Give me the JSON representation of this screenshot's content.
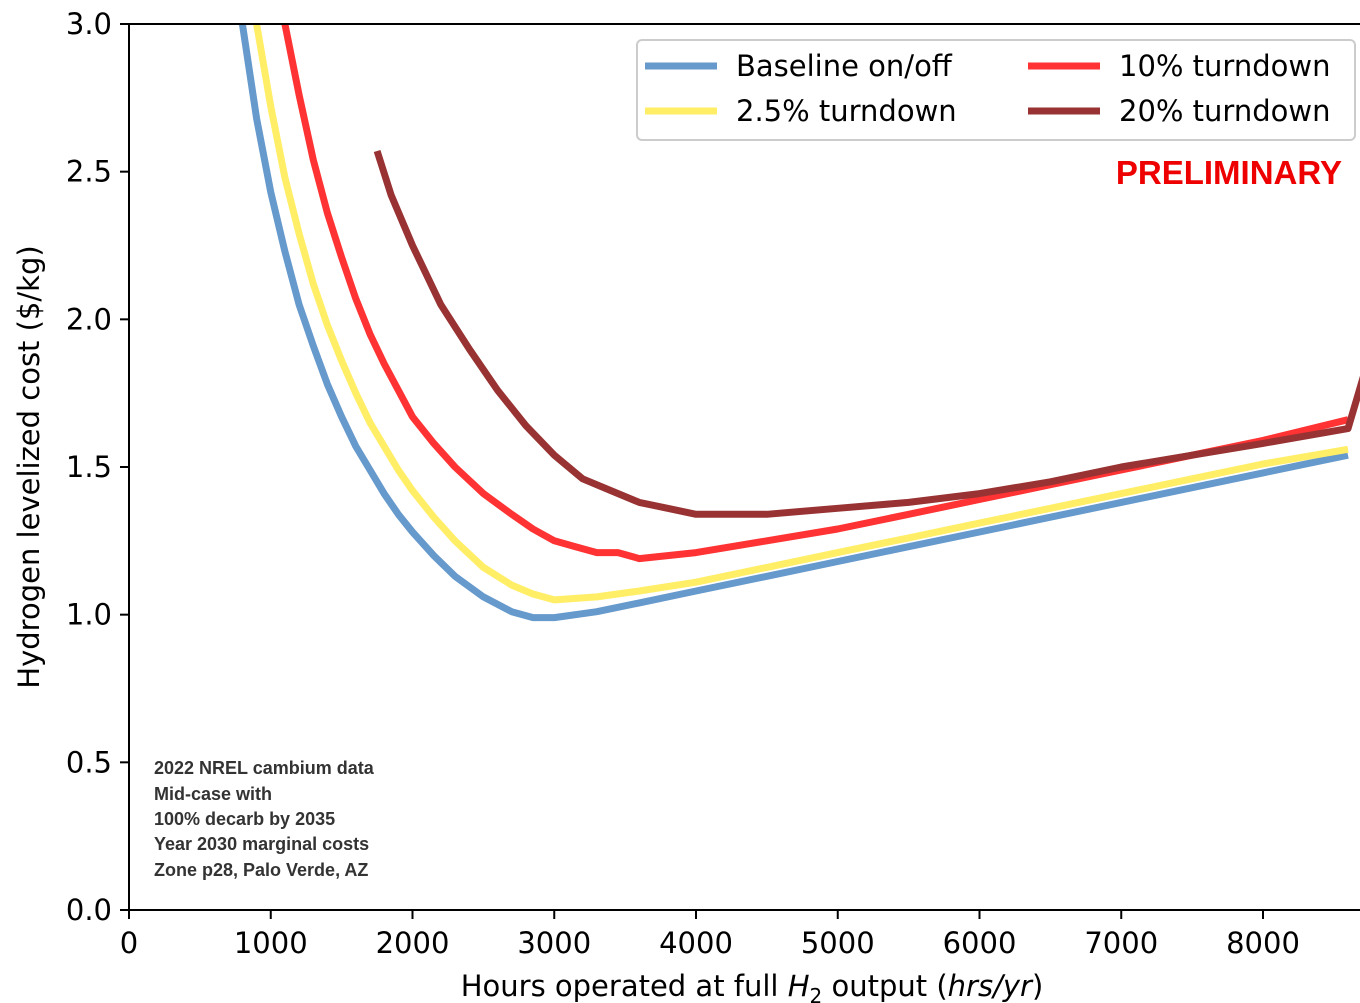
{
  "chart_data": {
    "type": "line",
    "xlabel_prefix": "Hours operated at full ",
    "xlabel_var": "H",
    "xlabel_sub": "2",
    "xlabel_mid": " output (",
    "xlabel_unit": "hrs/yr",
    "xlabel_suffix": ")",
    "ylabel": "Hydrogen levelized cost ($/kg)",
    "xlim": [
      0,
      8760
    ],
    "ylim": [
      0.0,
      3.0
    ],
    "xticks": [
      0,
      1000,
      2000,
      3000,
      4000,
      5000,
      6000,
      7000,
      8000
    ],
    "xtick_labels": [
      "0",
      "1000",
      "2000",
      "3000",
      "4000",
      "5000",
      "6000",
      "7000",
      "8000"
    ],
    "yticks": [
      0.0,
      0.5,
      1.0,
      1.5,
      2.0,
      2.5,
      3.0
    ],
    "ytick_labels": [
      "0.0",
      "0.5",
      "1.0",
      "1.5",
      "2.0",
      "2.5",
      "3.0"
    ],
    "legend_position": "top-right",
    "series": [
      {
        "name": "Baseline on/off",
        "color": "#6699cc",
        "x": [
          800,
          900,
          1000,
          1100,
          1200,
          1300,
          1400,
          1500,
          1600,
          1700,
          1800,
          1900,
          2000,
          2150,
          2300,
          2500,
          2700,
          2850,
          3000,
          3300,
          3600,
          4000,
          4500,
          5000,
          5500,
          6000,
          6500,
          7000,
          7500,
          8000,
          8600
        ],
        "values": [
          3.0,
          2.68,
          2.43,
          2.23,
          2.05,
          1.91,
          1.78,
          1.67,
          1.57,
          1.49,
          1.41,
          1.34,
          1.28,
          1.2,
          1.13,
          1.06,
          1.01,
          0.99,
          0.99,
          1.01,
          1.04,
          1.08,
          1.13,
          1.18,
          1.23,
          1.28,
          1.33,
          1.38,
          1.43,
          1.48,
          1.54
        ]
      },
      {
        "name": "2.5% turndown",
        "color": "#ffee66",
        "x": [
          900,
          1000,
          1100,
          1200,
          1300,
          1400,
          1500,
          1600,
          1700,
          1800,
          1900,
          2000,
          2150,
          2300,
          2500,
          2700,
          2850,
          3000,
          3300,
          3600,
          4000,
          4500,
          5000,
          5500,
          6000,
          6500,
          7000,
          7500,
          8000,
          8600
        ],
        "values": [
          3.0,
          2.72,
          2.48,
          2.29,
          2.12,
          1.98,
          1.86,
          1.75,
          1.65,
          1.57,
          1.49,
          1.42,
          1.33,
          1.25,
          1.16,
          1.1,
          1.07,
          1.05,
          1.06,
          1.08,
          1.11,
          1.16,
          1.21,
          1.26,
          1.31,
          1.36,
          1.41,
          1.46,
          1.51,
          1.56
        ]
      },
      {
        "name": "10% turndown",
        "color": "#ff3333",
        "x": [
          1100,
          1200,
          1300,
          1400,
          1500,
          1600,
          1700,
          1800,
          1900,
          2000,
          2150,
          2300,
          2500,
          2700,
          2850,
          3000,
          3150,
          3300,
          3450,
          3600,
          3800,
          4000,
          4500,
          5000,
          5500,
          6000,
          6500,
          7000,
          7500,
          8000,
          8600
        ],
        "values": [
          3.0,
          2.76,
          2.54,
          2.36,
          2.21,
          2.07,
          1.95,
          1.85,
          1.76,
          1.67,
          1.58,
          1.5,
          1.41,
          1.34,
          1.29,
          1.25,
          1.23,
          1.21,
          1.21,
          1.19,
          1.2,
          1.21,
          1.25,
          1.29,
          1.34,
          1.39,
          1.44,
          1.49,
          1.54,
          1.59,
          1.66
        ]
      },
      {
        "name": "20% turndown",
        "color": "#993333",
        "x": [
          1750,
          1850,
          2000,
          2200,
          2400,
          2600,
          2800,
          3000,
          3200,
          3400,
          3600,
          3800,
          4000,
          4200,
          4500,
          5000,
          5500,
          6000,
          6500,
          7000,
          7500,
          8000,
          8600,
          8760
        ],
        "values": [
          2.57,
          2.42,
          2.25,
          2.05,
          1.9,
          1.76,
          1.64,
          1.54,
          1.46,
          1.42,
          1.38,
          1.36,
          1.34,
          1.34,
          1.34,
          1.36,
          1.38,
          1.41,
          1.45,
          1.5,
          1.54,
          1.58,
          1.63,
          1.89
        ]
      }
    ]
  },
  "annotations": {
    "preliminary": "PRELIMINARY",
    "preliminary_color": "#ee0000",
    "note_lines": [
      "2022 NREL cambium data",
      "Mid-case with",
      "100% decarb by 2035",
      "Year 2030 marginal costs",
      "Zone p28, Palo Verde, AZ"
    ]
  }
}
